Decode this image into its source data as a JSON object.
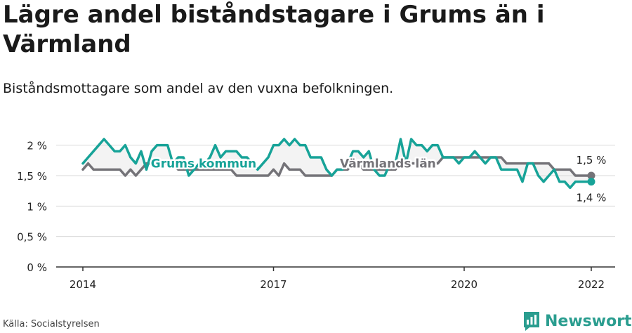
{
  "title": "Lägre andel biståndstagare i Grums än i Värmland",
  "subtitle": "Biståndsmottagare som andel av den vuxna befolkningen.",
  "source": "Källa: Socialstyrelsen",
  "brand": "Newsworthy",
  "colors": {
    "grums": "#17a398",
    "varmland": "#747378",
    "grid": "#d9d9d9",
    "axis": "#333333",
    "band": "#eeeeee"
  },
  "chart_data": {
    "type": "line",
    "xlim": [
      2014.0,
      2022.4
    ],
    "ylim": [
      0,
      2.25
    ],
    "y_ticks": [
      0,
      0.5,
      1,
      1.5,
      2
    ],
    "y_tick_labels": [
      "0 %",
      "0,5 %",
      "1 %",
      "1,5 %",
      "2 %"
    ],
    "x_ticks": [
      2014,
      2017,
      2020,
      2022
    ],
    "x_tick_labels": [
      "2014",
      "2017",
      "2020",
      "2022"
    ],
    "grid": true,
    "series": [
      {
        "name": "Grums kommun",
        "color": "#17a398",
        "end_label": "1,4 %",
        "x": [
          2014.0,
          2014.083,
          2014.167,
          2014.25,
          2014.333,
          2014.417,
          2014.5,
          2014.583,
          2014.667,
          2014.75,
          2014.833,
          2014.917,
          2015.0,
          2015.083,
          2015.167,
          2015.25,
          2015.333,
          2015.417,
          2015.5,
          2015.583,
          2015.667,
          2015.75,
          2015.833,
          2015.917,
          2016.0,
          2016.083,
          2016.167,
          2016.25,
          2016.333,
          2016.417,
          2016.5,
          2016.583,
          2016.667,
          2016.75,
          2016.833,
          2016.917,
          2017.0,
          2017.083,
          2017.167,
          2017.25,
          2017.333,
          2017.417,
          2017.5,
          2017.583,
          2017.667,
          2017.75,
          2017.833,
          2017.917,
          2018.0,
          2018.083,
          2018.167,
          2018.25,
          2018.333,
          2018.417,
          2018.5,
          2018.583,
          2018.667,
          2018.75,
          2018.833,
          2018.917,
          2019.0,
          2019.083,
          2019.167,
          2019.25,
          2019.333,
          2019.417,
          2019.5,
          2019.583,
          2019.667,
          2019.75,
          2019.833,
          2019.917,
          2020.0,
          2020.083,
          2020.167,
          2020.25,
          2020.333,
          2020.417,
          2020.5,
          2020.583,
          2020.667,
          2020.75,
          2020.833,
          2020.917,
          2021.0,
          2021.083,
          2021.167,
          2021.25,
          2021.333,
          2021.417,
          2021.5,
          2021.583,
          2021.667,
          2021.75,
          2021.833,
          2021.917,
          2022.0
        ],
        "y": [
          1.7,
          1.8,
          1.9,
          2.0,
          2.1,
          2.0,
          1.9,
          1.9,
          2.0,
          1.8,
          1.7,
          1.9,
          1.6,
          1.9,
          2.0,
          2.0,
          2.0,
          1.7,
          1.8,
          1.8,
          1.5,
          1.6,
          1.7,
          1.7,
          1.8,
          2.0,
          1.8,
          1.9,
          1.9,
          1.9,
          1.8,
          1.8,
          1.7,
          1.6,
          1.7,
          1.8,
          2.0,
          2.0,
          2.1,
          2.0,
          2.1,
          2.0,
          2.0,
          1.8,
          1.8,
          1.8,
          1.6,
          1.5,
          1.6,
          1.6,
          1.7,
          1.9,
          1.9,
          1.8,
          1.9,
          1.6,
          1.5,
          1.5,
          1.7,
          1.7,
          2.1,
          1.7,
          2.1,
          2.0,
          2.0,
          1.9,
          2.0,
          2.0,
          1.8,
          1.8,
          1.8,
          1.7,
          1.8,
          1.8,
          1.9,
          1.8,
          1.7,
          1.8,
          1.8,
          1.6,
          1.6,
          1.6,
          1.6,
          1.4,
          1.7,
          1.7,
          1.5,
          1.4,
          1.5,
          1.6,
          1.4,
          1.4,
          1.3,
          1.4,
          1.4,
          1.4,
          1.4
        ]
      },
      {
        "name": "Värmlands län",
        "color": "#747378",
        "end_label": "1,5 %",
        "x": [
          2014.0,
          2014.083,
          2014.167,
          2014.25,
          2014.333,
          2014.417,
          2014.5,
          2014.583,
          2014.667,
          2014.75,
          2014.833,
          2014.917,
          2015.0,
          2015.083,
          2015.167,
          2015.25,
          2015.333,
          2015.417,
          2015.5,
          2015.583,
          2015.667,
          2015.75,
          2015.833,
          2015.917,
          2016.0,
          2016.083,
          2016.167,
          2016.25,
          2016.333,
          2016.417,
          2016.5,
          2016.583,
          2016.667,
          2016.75,
          2016.833,
          2016.917,
          2017.0,
          2017.083,
          2017.167,
          2017.25,
          2017.333,
          2017.417,
          2017.5,
          2017.583,
          2017.667,
          2017.75,
          2017.833,
          2017.917,
          2018.0,
          2018.083,
          2018.167,
          2018.25,
          2018.333,
          2018.417,
          2018.5,
          2018.583,
          2018.667,
          2018.75,
          2018.833,
          2018.917,
          2019.0,
          2019.083,
          2019.167,
          2019.25,
          2019.333,
          2019.417,
          2019.5,
          2019.583,
          2019.667,
          2019.75,
          2019.833,
          2019.917,
          2020.0,
          2020.083,
          2020.167,
          2020.25,
          2020.333,
          2020.417,
          2020.5,
          2020.583,
          2020.667,
          2020.75,
          2020.833,
          2020.917,
          2021.0,
          2021.083,
          2021.167,
          2021.25,
          2021.333,
          2021.417,
          2021.5,
          2021.583,
          2021.667,
          2021.75,
          2021.833,
          2021.917,
          2022.0
        ],
        "y": [
          1.6,
          1.7,
          1.6,
          1.6,
          1.6,
          1.6,
          1.6,
          1.6,
          1.5,
          1.6,
          1.5,
          1.6,
          1.7,
          1.7,
          1.7,
          1.7,
          1.7,
          1.7,
          1.6,
          1.6,
          1.6,
          1.6,
          1.6,
          1.6,
          1.6,
          1.6,
          1.6,
          1.6,
          1.6,
          1.5,
          1.5,
          1.5,
          1.5,
          1.5,
          1.5,
          1.5,
          1.6,
          1.5,
          1.7,
          1.6,
          1.6,
          1.6,
          1.5,
          1.5,
          1.5,
          1.5,
          1.5,
          1.5,
          1.6,
          1.6,
          1.6,
          1.7,
          1.7,
          1.6,
          1.6,
          1.6,
          1.6,
          1.6,
          1.6,
          1.6,
          1.7,
          1.7,
          1.7,
          1.7,
          1.7,
          1.7,
          1.7,
          1.7,
          1.8,
          1.8,
          1.8,
          1.8,
          1.8,
          1.8,
          1.8,
          1.8,
          1.8,
          1.8,
          1.8,
          1.8,
          1.7,
          1.7,
          1.7,
          1.7,
          1.7,
          1.7,
          1.7,
          1.7,
          1.7,
          1.6,
          1.6,
          1.6,
          1.6,
          1.5,
          1.5,
          1.5,
          1.5
        ]
      }
    ],
    "annotations": [
      {
        "text": "Grums kommun",
        "series": "Grums kommun",
        "x": 2015.9,
        "y": 1.7
      },
      {
        "text": "Värmlands län",
        "series": "Värmlands län",
        "x": 2018.8,
        "y": 1.7
      }
    ]
  }
}
